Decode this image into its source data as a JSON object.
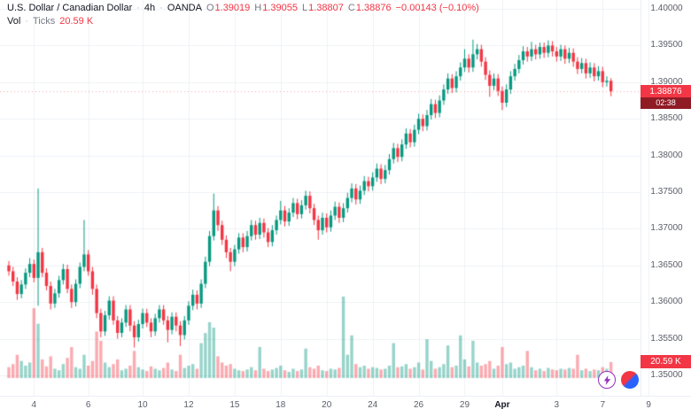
{
  "header": {
    "symbol": "U.S. Dollar / Canadian Dollar",
    "separator": "·",
    "interval": "4h",
    "exchange": "OANDA",
    "ohlc": {
      "o_label": "O",
      "o": "1.39019",
      "h_label": "H",
      "h": "1.39055",
      "l_label": "L",
      "l": "1.38807",
      "c_label": "C",
      "c": "1.38876"
    },
    "change": "−0.00143 (−0.10%)",
    "vol_label": "Vol",
    "vol_source": "Ticks",
    "vol_value": "20.59 K"
  },
  "price_badge": {
    "price": "1.38876",
    "countdown": "02:38"
  },
  "volume_badge": {
    "value": "20.59 K"
  },
  "colors": {
    "up": "#089981",
    "down": "#f23645",
    "vol_up": "rgba(8,153,129,0.42)",
    "vol_down": "rgba(242,54,69,0.42)",
    "grid": "#eef0f4",
    "axis_text": "#5a5e69",
    "badge_bg": "#f23645",
    "badge_countdown_bg": "#8f1b25",
    "boost_purple": "#962fbf",
    "paper_red": "#f23645",
    "paper_blue": "#2962ff"
  },
  "chart_data": {
    "type": "candlestick",
    "symbol": "U.S. Dollar / Canadian Dollar",
    "interval": "4h",
    "exchange": "OANDA",
    "title": "USD/CAD 4h candlestick chart with tick volume",
    "last": {
      "open": 1.39019,
      "high": 1.39055,
      "low": 1.38807,
      "close": 1.38876,
      "change": -0.00143,
      "change_pct": -0.1,
      "countdown": "02:38",
      "volume_ticks": "20.59 K"
    },
    "y_axis": {
      "min": 1.35,
      "max": 1.4,
      "step": 0.005,
      "tick_labels": [
        "1.40000",
        "1.39500",
        "1.39000",
        "1.38500",
        "1.38000",
        "1.37500",
        "1.37000",
        "1.36500",
        "1.36000",
        "1.35500",
        "1.35000"
      ]
    },
    "x_axis": {
      "ticks": [
        {
          "label": "4",
          "index": 6
        },
        {
          "label": "6",
          "index": 19
        },
        {
          "label": "10",
          "index": 32
        },
        {
          "label": "12",
          "index": 43
        },
        {
          "label": "15",
          "index": 54
        },
        {
          "label": "18",
          "index": 65
        },
        {
          "label": "20",
          "index": 76
        },
        {
          "label": "24",
          "index": 87
        },
        {
          "label": "26",
          "index": 98
        },
        {
          "label": "29",
          "index": 109
        },
        {
          "label": "Apr",
          "index": 118,
          "major": true
        },
        {
          "label": "3",
          "index": 131
        },
        {
          "label": "7",
          "index": 142
        },
        {
          "label": "9",
          "index": 153
        }
      ]
    },
    "volume_unit": "K ticks",
    "candles": [
      [
        1.365,
        1.3656,
        1.3636,
        1.3642,
        14
      ],
      [
        1.3642,
        1.3648,
        1.3622,
        1.3628,
        18
      ],
      [
        1.3628,
        1.3634,
        1.3603,
        1.3611,
        30
      ],
      [
        1.3611,
        1.363,
        1.3605,
        1.3624,
        22
      ],
      [
        1.3624,
        1.3646,
        1.3618,
        1.364,
        16
      ],
      [
        1.364,
        1.366,
        1.3634,
        1.3652,
        20
      ],
      [
        1.3652,
        1.3658,
        1.3627,
        1.3633,
        90
      ],
      [
        1.3633,
        1.3755,
        1.3595,
        1.3668,
        70
      ],
      [
        1.3668,
        1.3674,
        1.3634,
        1.364,
        24
      ],
      [
        1.364,
        1.3646,
        1.3616,
        1.3622,
        15
      ],
      [
        1.3622,
        1.3628,
        1.359,
        1.3598,
        28
      ],
      [
        1.3598,
        1.3618,
        1.3592,
        1.3612,
        12
      ],
      [
        1.3612,
        1.3636,
        1.3606,
        1.363,
        10
      ],
      [
        1.363,
        1.3652,
        1.3624,
        1.3645,
        18
      ],
      [
        1.3645,
        1.3651,
        1.3612,
        1.3618,
        26
      ],
      [
        1.3618,
        1.3624,
        1.3592,
        1.36,
        40
      ],
      [
        1.36,
        1.3631,
        1.3594,
        1.3625,
        14
      ],
      [
        1.3625,
        1.3654,
        1.3619,
        1.3648,
        12
      ],
      [
        1.3648,
        1.3712,
        1.3642,
        1.3665,
        30
      ],
      [
        1.3665,
        1.3671,
        1.3636,
        1.3642,
        16
      ],
      [
        1.3642,
        1.3648,
        1.361,
        1.3618,
        22
      ],
      [
        1.3618,
        1.3624,
        1.3578,
        1.3585,
        60
      ],
      [
        1.3585,
        1.3591,
        1.3552,
        1.356,
        48
      ],
      [
        1.356,
        1.3588,
        1.3554,
        1.3582,
        20
      ],
      [
        1.3582,
        1.3608,
        1.3576,
        1.3602,
        14
      ],
      [
        1.3602,
        1.3608,
        1.3569,
        1.3575,
        18
      ],
      [
        1.3575,
        1.3581,
        1.355,
        1.3558,
        24
      ],
      [
        1.3558,
        1.3578,
        1.3552,
        1.3572,
        10
      ],
      [
        1.3572,
        1.3596,
        1.3566,
        1.359,
        12
      ],
      [
        1.359,
        1.3596,
        1.356,
        1.3568,
        16
      ],
      [
        1.3568,
        1.3574,
        1.3538,
        1.3552,
        35
      ],
      [
        1.3552,
        1.3576,
        1.3546,
        1.357,
        14
      ],
      [
        1.357,
        1.3591,
        1.3564,
        1.3585,
        11
      ],
      [
        1.3585,
        1.3591,
        1.3566,
        1.3572,
        9
      ],
      [
        1.3572,
        1.3578,
        1.3552,
        1.356,
        15
      ],
      [
        1.356,
        1.3584,
        1.3554,
        1.3578,
        12
      ],
      [
        1.3578,
        1.3596,
        1.3572,
        1.359,
        10
      ],
      [
        1.359,
        1.3596,
        1.3569,
        1.3575,
        13
      ],
      [
        1.3575,
        1.3581,
        1.3545,
        1.3562,
        20
      ],
      [
        1.3562,
        1.3586,
        1.3556,
        1.358,
        11
      ],
      [
        1.358,
        1.3586,
        1.356,
        1.3568,
        9
      ],
      [
        1.3568,
        1.3574,
        1.354,
        1.3555,
        30
      ],
      [
        1.3555,
        1.3581,
        1.3549,
        1.3575,
        13
      ],
      [
        1.3575,
        1.3601,
        1.3569,
        1.3595,
        16
      ],
      [
        1.3595,
        1.3617,
        1.3589,
        1.361,
        18
      ],
      [
        1.361,
        1.3616,
        1.359,
        1.3598,
        12
      ],
      [
        1.3598,
        1.3631,
        1.3592,
        1.3625,
        45
      ],
      [
        1.3625,
        1.3662,
        1.3619,
        1.3655,
        58
      ],
      [
        1.3655,
        1.3697,
        1.3649,
        1.369,
        72
      ],
      [
        1.369,
        1.3748,
        1.3684,
        1.3725,
        65
      ],
      [
        1.3725,
        1.3731,
        1.3697,
        1.3705,
        28
      ],
      [
        1.3705,
        1.3711,
        1.3678,
        1.3685,
        20
      ],
      [
        1.3685,
        1.3691,
        1.366,
        1.3668,
        16
      ],
      [
        1.3668,
        1.3674,
        1.3642,
        1.3655,
        18
      ],
      [
        1.3655,
        1.3678,
        1.3649,
        1.3672,
        12
      ],
      [
        1.3672,
        1.3694,
        1.3666,
        1.3688,
        10
      ],
      [
        1.3688,
        1.3694,
        1.3668,
        1.3675,
        9
      ],
      [
        1.3675,
        1.3697,
        1.3669,
        1.369,
        11
      ],
      [
        1.369,
        1.3712,
        1.3684,
        1.3705,
        14
      ],
      [
        1.3705,
        1.3711,
        1.3685,
        1.3692,
        10
      ],
      [
        1.3692,
        1.3715,
        1.3686,
        1.3708,
        40
      ],
      [
        1.3708,
        1.3714,
        1.3688,
        1.3695,
        12
      ],
      [
        1.3695,
        1.3701,
        1.3675,
        1.3682,
        9
      ],
      [
        1.3682,
        1.3705,
        1.3676,
        1.3698,
        11
      ],
      [
        1.3698,
        1.3718,
        1.3692,
        1.3712,
        13
      ],
      [
        1.3712,
        1.3738,
        1.3706,
        1.3725,
        16
      ],
      [
        1.3725,
        1.3731,
        1.3703,
        1.371,
        10
      ],
      [
        1.371,
        1.3728,
        1.3704,
        1.3722,
        8
      ],
      [
        1.3722,
        1.3742,
        1.3716,
        1.3735,
        12
      ],
      [
        1.3735,
        1.3741,
        1.3713,
        1.372,
        9
      ],
      [
        1.372,
        1.3739,
        1.3714,
        1.3732,
        11
      ],
      [
        1.3732,
        1.3752,
        1.3726,
        1.3745,
        38
      ],
      [
        1.3745,
        1.3751,
        1.3721,
        1.3728,
        14
      ],
      [
        1.3728,
        1.3734,
        1.3705,
        1.3712,
        12
      ],
      [
        1.3712,
        1.3718,
        1.3685,
        1.3698,
        16
      ],
      [
        1.3698,
        1.3722,
        1.3692,
        1.3715,
        10
      ],
      [
        1.3715,
        1.3721,
        1.3695,
        1.3702,
        9
      ],
      [
        1.3702,
        1.3725,
        1.3696,
        1.3718,
        12
      ],
      [
        1.3718,
        1.3737,
        1.3712,
        1.373,
        11
      ],
      [
        1.373,
        1.3736,
        1.3708,
        1.3715,
        13
      ],
      [
        1.3715,
        1.3735,
        1.3709,
        1.3728,
        105
      ],
      [
        1.3728,
        1.3749,
        1.3722,
        1.3742,
        30
      ],
      [
        1.3742,
        1.3762,
        1.3736,
        1.3755,
        55
      ],
      [
        1.3755,
        1.3761,
        1.3733,
        1.374,
        18
      ],
      [
        1.374,
        1.3759,
        1.3734,
        1.3752,
        14
      ],
      [
        1.3752,
        1.3772,
        1.3746,
        1.3765,
        16
      ],
      [
        1.3765,
        1.3771,
        1.3751,
        1.3758,
        12
      ],
      [
        1.3758,
        1.3777,
        1.3752,
        1.377,
        14
      ],
      [
        1.377,
        1.3789,
        1.3764,
        1.3782,
        13
      ],
      [
        1.3782,
        1.3788,
        1.3761,
        1.3768,
        11
      ],
      [
        1.3768,
        1.3787,
        1.3762,
        1.378,
        12
      ],
      [
        1.378,
        1.3802,
        1.3774,
        1.3795,
        16
      ],
      [
        1.3795,
        1.3817,
        1.3789,
        1.381,
        45
      ],
      [
        1.381,
        1.3816,
        1.3791,
        1.3798,
        14
      ],
      [
        1.3798,
        1.3822,
        1.3792,
        1.3815,
        15
      ],
      [
        1.3815,
        1.3837,
        1.3809,
        1.383,
        18
      ],
      [
        1.383,
        1.3836,
        1.3811,
        1.3818,
        12
      ],
      [
        1.3818,
        1.3842,
        1.3812,
        1.3835,
        14
      ],
      [
        1.3835,
        1.3857,
        1.3829,
        1.385,
        20
      ],
      [
        1.385,
        1.3856,
        1.3833,
        1.384,
        11
      ],
      [
        1.384,
        1.3862,
        1.3834,
        1.3855,
        50
      ],
      [
        1.3855,
        1.3877,
        1.3849,
        1.387,
        22
      ],
      [
        1.387,
        1.3876,
        1.3851,
        1.3858,
        12
      ],
      [
        1.3858,
        1.3882,
        1.3852,
        1.3875,
        14
      ],
      [
        1.3875,
        1.3897,
        1.3869,
        1.389,
        18
      ],
      [
        1.389,
        1.3912,
        1.3884,
        1.3905,
        42
      ],
      [
        1.3905,
        1.3911,
        1.3885,
        1.3892,
        14
      ],
      [
        1.3892,
        1.3915,
        1.3886,
        1.3908,
        16
      ],
      [
        1.3908,
        1.3927,
        1.3902,
        1.392,
        55
      ],
      [
        1.392,
        1.3945,
        1.3914,
        1.3932,
        24
      ],
      [
        1.3932,
        1.3938,
        1.3913,
        1.392,
        15
      ],
      [
        1.392,
        1.3958,
        1.3914,
        1.3938,
        48
      ],
      [
        1.3938,
        1.3952,
        1.3931,
        1.3945,
        20
      ],
      [
        1.3945,
        1.3951,
        1.3921,
        1.3928,
        16
      ],
      [
        1.3928,
        1.3934,
        1.3903,
        1.391,
        18
      ],
      [
        1.391,
        1.3916,
        1.388,
        1.3895,
        22
      ],
      [
        1.3895,
        1.3912,
        1.3889,
        1.3905,
        12
      ],
      [
        1.3905,
        1.3911,
        1.3881,
        1.3888,
        16
      ],
      [
        1.3888,
        1.3894,
        1.3862,
        1.3872,
        40
      ],
      [
        1.3872,
        1.3897,
        1.3866,
        1.389,
        18
      ],
      [
        1.389,
        1.3915,
        1.3884,
        1.3908,
        20
      ],
      [
        1.3908,
        1.3925,
        1.3902,
        1.3918,
        12
      ],
      [
        1.3918,
        1.3937,
        1.3912,
        1.393,
        14
      ],
      [
        1.393,
        1.3949,
        1.3924,
        1.3942,
        16
      ],
      [
        1.3942,
        1.3948,
        1.3928,
        1.3935,
        35
      ],
      [
        1.3935,
        1.3955,
        1.3929,
        1.3945,
        14
      ],
      [
        1.3945,
        1.3951,
        1.3931,
        1.3938,
        10
      ],
      [
        1.3938,
        1.3954,
        1.3932,
        1.3948,
        12
      ],
      [
        1.3948,
        1.3954,
        1.3933,
        1.394,
        9
      ],
      [
        1.394,
        1.3957,
        1.3934,
        1.395,
        13
      ],
      [
        1.395,
        1.3956,
        1.3935,
        1.3942,
        11
      ],
      [
        1.3942,
        1.3948,
        1.3928,
        1.3935,
        10
      ],
      [
        1.3935,
        1.3951,
        1.3929,
        1.3945,
        12
      ],
      [
        1.3945,
        1.395,
        1.3925,
        1.3932,
        11
      ],
      [
        1.3932,
        1.3947,
        1.3926,
        1.394,
        13
      ],
      [
        1.394,
        1.3946,
        1.3921,
        1.3928,
        12
      ],
      [
        1.3928,
        1.3934,
        1.3911,
        1.3918,
        30
      ],
      [
        1.3918,
        1.3933,
        1.3912,
        1.3926,
        10
      ],
      [
        1.3926,
        1.3932,
        1.3905,
        1.3912,
        12
      ],
      [
        1.3912,
        1.3927,
        1.3906,
        1.392,
        9
      ],
      [
        1.392,
        1.3926,
        1.3901,
        1.3908,
        11
      ],
      [
        1.3908,
        1.3922,
        1.3902,
        1.3915,
        10
      ],
      [
        1.3915,
        1.3921,
        1.3893,
        1.39,
        14
      ],
      [
        1.39,
        1.3908,
        1.3894,
        1.39019,
        12
      ],
      [
        1.39019,
        1.39055,
        1.38807,
        1.38876,
        20.59
      ]
    ]
  }
}
